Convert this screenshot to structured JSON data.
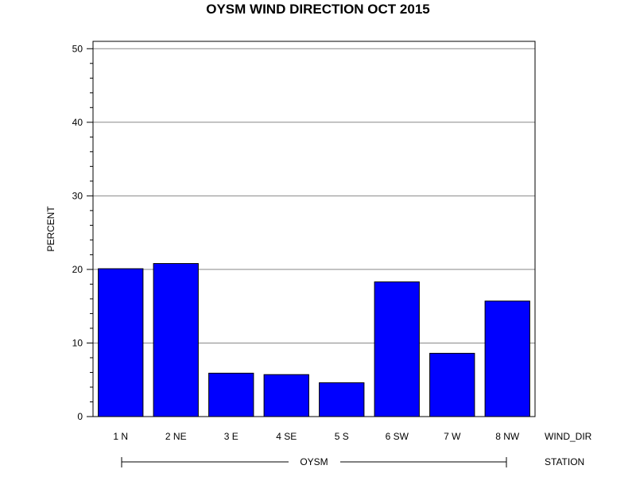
{
  "chart_data": {
    "type": "bar",
    "title": "OYSM WIND DIRECTION OCT 2015",
    "ylabel": "PERCENT",
    "category_axis_label": "WIND_DIR",
    "group_axis_label": "STATION",
    "group": "OYSM",
    "categories": [
      "1 N",
      "2 NE",
      "3 E",
      "4 SE",
      "5 S",
      "6 SW",
      "7 W",
      "8 NW"
    ],
    "values": [
      20.1,
      20.8,
      5.9,
      5.7,
      4.6,
      18.3,
      8.6,
      15.7
    ],
    "ylim": [
      0,
      51
    ],
    "yticks": [
      0,
      10,
      20,
      30,
      40,
      50
    ],
    "grid": true,
    "bar_color": "#0000ff"
  }
}
